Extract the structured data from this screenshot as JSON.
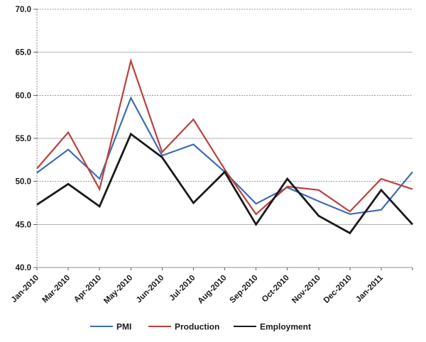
{
  "chart_data": {
    "type": "line",
    "title": "",
    "xlabel": "",
    "ylabel": "",
    "categories": [
      "Jan-2010",
      "Mar-2010",
      "Apr-2010",
      "May-2010",
      "Jun-2010",
      "Jul-2010",
      "Aug-2010",
      "Sep-2010",
      "Oct-2010",
      "Nov-2010",
      "Dec-2010",
      "Jan-2011",
      ""
    ],
    "series": [
      {
        "name": "PMI",
        "color": "#3d6cb4",
        "stroke_width": 2.2,
        "values": [
          51.0,
          53.7,
          50.3,
          59.7,
          53.0,
          54.3,
          51.1,
          47.4,
          49.3,
          47.7,
          46.2,
          46.7,
          51.1
        ]
      },
      {
        "name": "Production",
        "color": "#bf3f3b",
        "stroke_width": 2.2,
        "values": [
          51.5,
          55.7,
          49.1,
          64.0,
          53.4,
          57.2,
          51.4,
          46.2,
          49.4,
          49.0,
          46.5,
          50.3,
          49.1
        ]
      },
      {
        "name": "Employment",
        "color": "#1a1a1a",
        "stroke_width": 2.8,
        "values": [
          47.3,
          49.7,
          47.1,
          55.5,
          52.8,
          47.5,
          51.1,
          45.0,
          50.3,
          46.0,
          44.0,
          49.0,
          45.0
        ]
      }
    ],
    "ylim": [
      40.0,
      70.0
    ],
    "ytick_step": 5.0,
    "yticks": [
      "70.0",
      "65.0",
      "60.0",
      "55.0",
      "50.0",
      "45.0",
      "40.0"
    ],
    "grid": true,
    "x_label_rotation": -45,
    "legend_position": "bottom",
    "colors": {
      "grid_solid": "#b3b3b3",
      "grid_dotted": "#999999",
      "axis": "#8c8c8c",
      "tick": "#666666",
      "label_text": "#1a1a1a",
      "background": "#ffffff"
    }
  }
}
